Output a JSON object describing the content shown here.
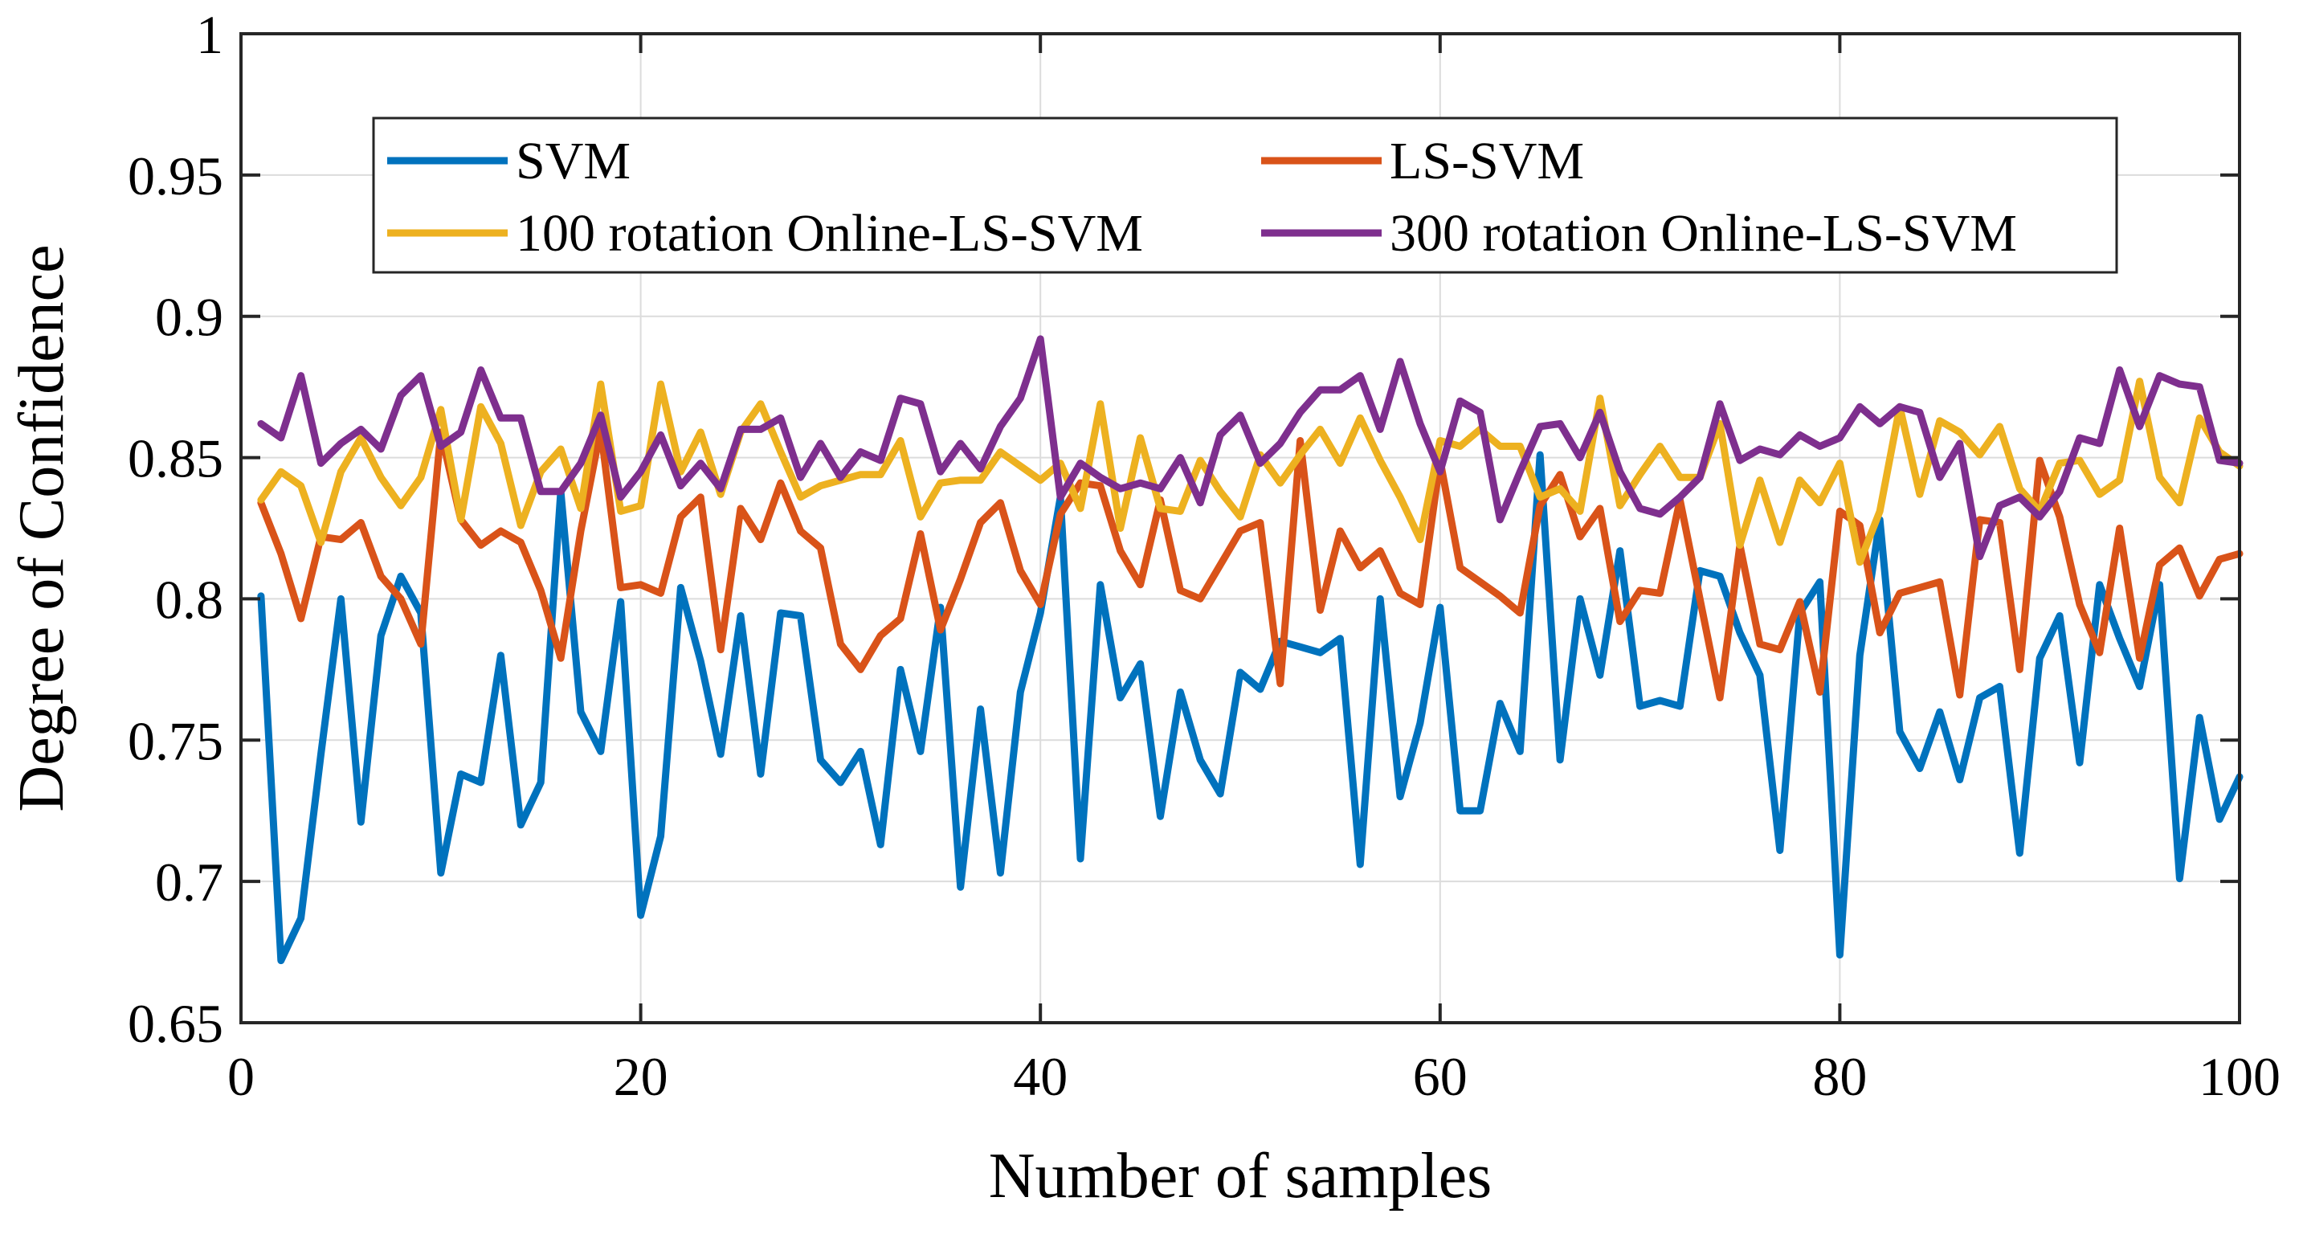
{
  "chart_data": {
    "type": "line",
    "title": "",
    "xlabel": "Number of samples",
    "ylabel": "Degree of Confidence",
    "xlim": [
      0,
      100
    ],
    "ylim": [
      0.65,
      1
    ],
    "xticks": [
      0,
      20,
      40,
      60,
      80,
      100
    ],
    "xtick_labels": [
      "0",
      "20",
      "40",
      "60",
      "80",
      "100"
    ],
    "yticks": [
      0.65,
      0.7,
      0.75,
      0.8,
      0.85,
      0.9,
      0.95,
      1
    ],
    "ytick_labels": [
      "0.65",
      "0.7",
      "0.75",
      "0.8",
      "0.85",
      "0.9",
      "0.95",
      "1"
    ],
    "grid": true,
    "legend_position": "top",
    "x_start": 1,
    "series": [
      {
        "name": "SVM",
        "color": "#0072BD",
        "values": [
          0.801,
          0.672,
          0.687,
          0.745,
          0.8,
          0.721,
          0.787,
          0.808,
          0.795,
          0.703,
          0.738,
          0.735,
          0.78,
          0.72,
          0.735,
          0.838,
          0.76,
          0.746,
          0.799,
          0.688,
          0.716,
          0.804,
          0.778,
          0.745,
          0.794,
          0.738,
          0.795,
          0.794,
          0.743,
          0.735,
          0.746,
          0.713,
          0.775,
          0.746,
          0.797,
          0.698,
          0.761,
          0.703,
          0.767,
          0.795,
          0.836,
          0.708,
          0.805,
          0.765,
          0.777,
          0.723,
          0.767,
          0.743,
          0.731,
          0.774,
          0.768,
          0.785,
          0.783,
          0.781,
          0.786,
          0.706,
          0.8,
          0.73,
          0.756,
          0.797,
          0.725,
          0.725,
          0.763,
          0.746,
          0.851,
          0.743,
          0.8,
          0.773,
          0.817,
          0.762,
          0.764,
          0.762,
          0.81,
          0.808,
          0.788,
          0.773,
          0.711,
          0.795,
          0.806,
          0.674,
          0.78,
          0.828,
          0.753,
          0.74,
          0.76,
          0.736,
          0.765,
          0.769,
          0.71,
          0.779,
          0.794,
          0.742,
          0.805,
          0.786,
          0.769,
          0.805,
          0.701,
          0.758,
          0.722,
          0.737
        ]
      },
      {
        "name": "LS-SVM",
        "color": "#D95319",
        "values": [
          0.834,
          0.816,
          0.793,
          0.822,
          0.821,
          0.827,
          0.808,
          0.8,
          0.784,
          0.859,
          0.828,
          0.819,
          0.824,
          0.82,
          0.803,
          0.779,
          0.824,
          0.86,
          0.804,
          0.805,
          0.802,
          0.829,
          0.836,
          0.782,
          0.832,
          0.821,
          0.841,
          0.824,
          0.818,
          0.784,
          0.775,
          0.787,
          0.793,
          0.823,
          0.789,
          0.807,
          0.827,
          0.834,
          0.81,
          0.798,
          0.83,
          0.841,
          0.84,
          0.817,
          0.805,
          0.835,
          0.803,
          0.8,
          0.812,
          0.824,
          0.827,
          0.77,
          0.856,
          0.796,
          0.824,
          0.811,
          0.817,
          0.802,
          0.798,
          0.849,
          0.811,
          0.806,
          0.801,
          0.795,
          0.833,
          0.844,
          0.822,
          0.832,
          0.792,
          0.803,
          0.802,
          0.835,
          0.8,
          0.765,
          0.819,
          0.784,
          0.782,
          0.799,
          0.767,
          0.831,
          0.826,
          0.788,
          0.802,
          0.804,
          0.806,
          0.766,
          0.828,
          0.827,
          0.775,
          0.849,
          0.829,
          0.798,
          0.781,
          0.825,
          0.779,
          0.812,
          0.818,
          0.801,
          0.814,
          0.816
        ]
      },
      {
        "name": "100 rotation Online-LS-SVM",
        "color": "#EDB120",
        "values": [
          0.835,
          0.845,
          0.84,
          0.82,
          0.845,
          0.857,
          0.843,
          0.833,
          0.843,
          0.867,
          0.828,
          0.868,
          0.855,
          0.826,
          0.845,
          0.853,
          0.832,
          0.876,
          0.831,
          0.833,
          0.876,
          0.845,
          0.859,
          0.837,
          0.859,
          0.869,
          0.852,
          0.836,
          0.84,
          0.842,
          0.844,
          0.844,
          0.856,
          0.829,
          0.841,
          0.842,
          0.842,
          0.852,
          0.847,
          0.842,
          0.848,
          0.832,
          0.869,
          0.825,
          0.857,
          0.832,
          0.831,
          0.849,
          0.838,
          0.829,
          0.851,
          0.841,
          0.851,
          0.86,
          0.848,
          0.864,
          0.849,
          0.836,
          0.821,
          0.856,
          0.854,
          0.86,
          0.854,
          0.854,
          0.836,
          0.839,
          0.831,
          0.871,
          0.833,
          0.844,
          0.854,
          0.843,
          0.843,
          0.862,
          0.819,
          0.842,
          0.82,
          0.842,
          0.834,
          0.848,
          0.813,
          0.831,
          0.868,
          0.837,
          0.863,
          0.859,
          0.851,
          0.861,
          0.839,
          0.831,
          0.848,
          0.849,
          0.837,
          0.842,
          0.877,
          0.843,
          0.834,
          0.864,
          0.852,
          0.847
        ]
      },
      {
        "name": "300 rotation Online-LS-SVM",
        "color": "#7E2F8E",
        "values": [
          0.862,
          0.857,
          0.879,
          0.848,
          0.855,
          0.86,
          0.853,
          0.872,
          0.879,
          0.854,
          0.859,
          0.881,
          0.864,
          0.864,
          0.838,
          0.838,
          0.848,
          0.865,
          0.836,
          0.845,
          0.858,
          0.84,
          0.848,
          0.839,
          0.86,
          0.86,
          0.864,
          0.843,
          0.855,
          0.843,
          0.852,
          0.849,
          0.871,
          0.869,
          0.845,
          0.855,
          0.846,
          0.861,
          0.871,
          0.892,
          0.836,
          0.848,
          0.843,
          0.839,
          0.841,
          0.839,
          0.85,
          0.834,
          0.858,
          0.865,
          0.848,
          0.855,
          0.866,
          0.874,
          0.874,
          0.879,
          0.86,
          0.884,
          0.862,
          0.845,
          0.87,
          0.866,
          0.828,
          0.845,
          0.861,
          0.862,
          0.85,
          0.866,
          0.845,
          0.832,
          0.83,
          0.836,
          0.843,
          0.869,
          0.849,
          0.853,
          0.851,
          0.858,
          0.854,
          0.857,
          0.868,
          0.862,
          0.868,
          0.866,
          0.843,
          0.855,
          0.815,
          0.833,
          0.836,
          0.829,
          0.838,
          0.857,
          0.855,
          0.881,
          0.861,
          0.879,
          0.876,
          0.875,
          0.849,
          0.848
        ]
      }
    ]
  }
}
